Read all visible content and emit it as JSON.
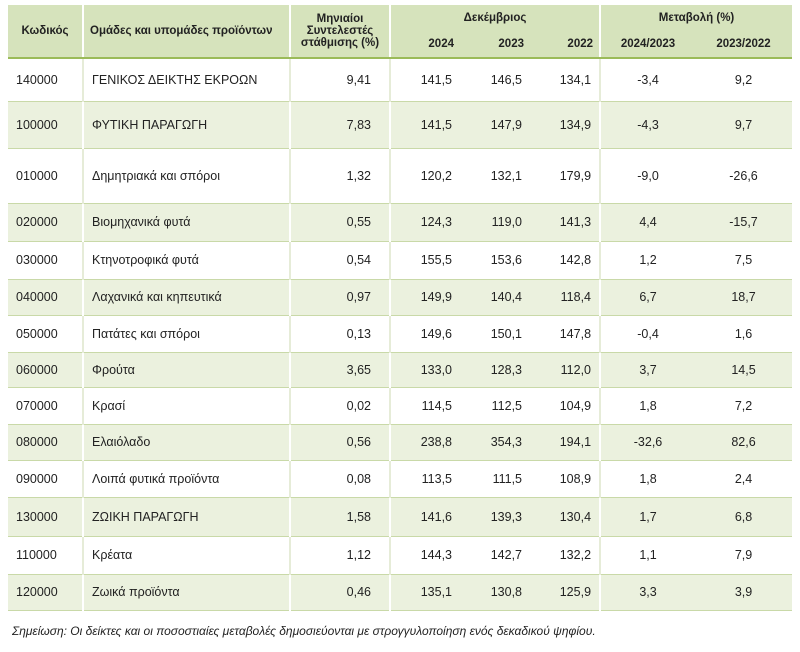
{
  "table": {
    "headers": {
      "code": "Κωδικός",
      "group": "Ομάδες και υπομάδες προϊόντων",
      "weight": "Μηνιαίοι Συντελεστές στάθμισης (%)",
      "december": "Δεκέμβριος",
      "change": "Μεταβολή (%)",
      "years": [
        "2024",
        "2023",
        "2022"
      ],
      "changes": [
        "2024/2023",
        "2023/2022"
      ]
    },
    "rows": [
      [
        "140000",
        "ΓΕΝΙΚΟΣ ΔΕΙΚΤΗΣ ΕΚΡΟΩΝ",
        "9,41",
        "141,5",
        "146,5",
        "134,1",
        "-3,4",
        "9,2"
      ],
      [
        "100000",
        "ΦΥΤΙΚΗ ΠΑΡΑΓΩΓΗ",
        "7,83",
        "141,5",
        "147,9",
        "134,9",
        "-4,3",
        "9,7"
      ],
      [
        "010000",
        "Δημητριακά και σπόροι",
        "1,32",
        "120,2",
        "132,1",
        "179,9",
        "-9,0",
        "-26,6"
      ],
      [
        "020000",
        "Βιομηχανικά φυτά",
        "0,55",
        "124,3",
        "119,0",
        "141,3",
        "4,4",
        "-15,7"
      ],
      [
        "030000",
        "Κτηνοτροφικά φυτά",
        "0,54",
        "155,5",
        "153,6",
        "142,8",
        "1,2",
        "7,5"
      ],
      [
        "040000",
        "Λαχανικά και κηπευτικά",
        "0,97",
        "149,9",
        "140,4",
        "118,4",
        "6,7",
        "18,7"
      ],
      [
        "050000",
        "Πατάτες και σπόροι",
        "0,13",
        "149,6",
        "150,1",
        "147,8",
        "-0,4",
        "1,6"
      ],
      [
        "060000",
        "Φρούτα",
        "3,65",
        "133,0",
        "128,3",
        "112,0",
        "3,7",
        "14,5"
      ],
      [
        "070000",
        "Κρασί",
        "0,02",
        "114,5",
        "112,5",
        "104,9",
        "1,8",
        "7,2"
      ],
      [
        "080000",
        "Ελαιόλαδο",
        "0,56",
        "238,8",
        "354,3",
        "194,1",
        "-32,6",
        "82,6"
      ],
      [
        "090000",
        "Λοιπά φυτικά προϊόντα",
        "0,08",
        "113,5",
        "111,5",
        "108,9",
        "1,8",
        "2,4"
      ],
      [
        "130000",
        "ΖΩΙΚΗ ΠΑΡΑΓΩΓΗ",
        "1,58",
        "141,6",
        "139,3",
        "130,4",
        "1,7",
        "6,8"
      ],
      [
        "110000",
        "Κρέατα",
        "1,12",
        "144,3",
        "142,7",
        "132,2",
        "1,1",
        "7,9"
      ],
      [
        "120000",
        "Ζωικά προϊόντα",
        "0,46",
        "135,1",
        "130,8",
        "125,9",
        "3,3",
        "3,9"
      ]
    ]
  },
  "footnote": "Σημείωση: Οι δείκτες και οι ποσοστιαίες μεταβολές δημοσιεύονται με στρογγυλοποίηση ενός δεκαδικού ψηφίου."
}
